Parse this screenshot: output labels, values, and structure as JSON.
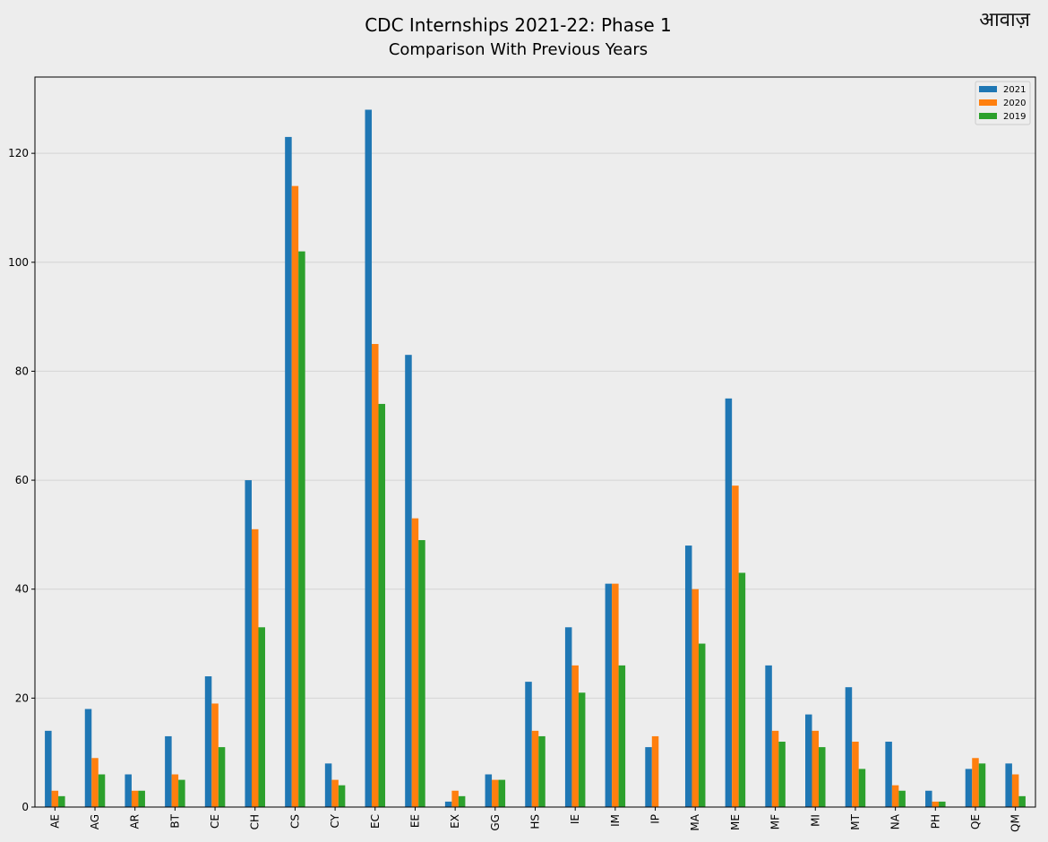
{
  "page": {
    "title": "CDC Internships 2021-22: Phase 1",
    "subtitle": "Comparison With Previous Years",
    "watermark": "आवाज़"
  },
  "chart_data": {
    "type": "bar",
    "title": "CDC Internships 2021-22: Phase 1",
    "subtitle": "Comparison With Previous Years",
    "xlabel": "",
    "ylabel": "",
    "ylim": [
      0,
      134
    ],
    "yticks": [
      "0",
      "20",
      "40",
      "60",
      "80",
      "100",
      "120"
    ],
    "grid": "horizontal",
    "legend_position": "top-right",
    "categories": [
      "AE",
      "AG",
      "AR",
      "BT",
      "CE",
      "CH",
      "CS",
      "CY",
      "EC",
      "EE",
      "EX",
      "GG",
      "HS",
      "IE",
      "IM",
      "IP",
      "MA",
      "ME",
      "MF",
      "MI",
      "MT",
      "NA",
      "PH",
      "QE",
      "QM"
    ],
    "series": [
      {
        "name": "2021",
        "color": "#1f77b4",
        "values": [
          14,
          18,
          6,
          13,
          24,
          60,
          123,
          8,
          128,
          83,
          1,
          6,
          23,
          33,
          41,
          11,
          48,
          75,
          26,
          17,
          22,
          12,
          3,
          7,
          8
        ]
      },
      {
        "name": "2020",
        "color": "#ff7f0e",
        "values": [
          3,
          9,
          3,
          6,
          19,
          51,
          114,
          5,
          85,
          53,
          3,
          5,
          14,
          26,
          41,
          13,
          40,
          59,
          14,
          14,
          12,
          4,
          1,
          9,
          6
        ]
      },
      {
        "name": "2019",
        "color": "#2ca02c",
        "values": [
          2,
          6,
          3,
          5,
          11,
          33,
          102,
          4,
          74,
          49,
          2,
          5,
          13,
          21,
          26,
          0,
          30,
          43,
          12,
          11,
          7,
          3,
          1,
          8,
          2
        ]
      }
    ]
  }
}
